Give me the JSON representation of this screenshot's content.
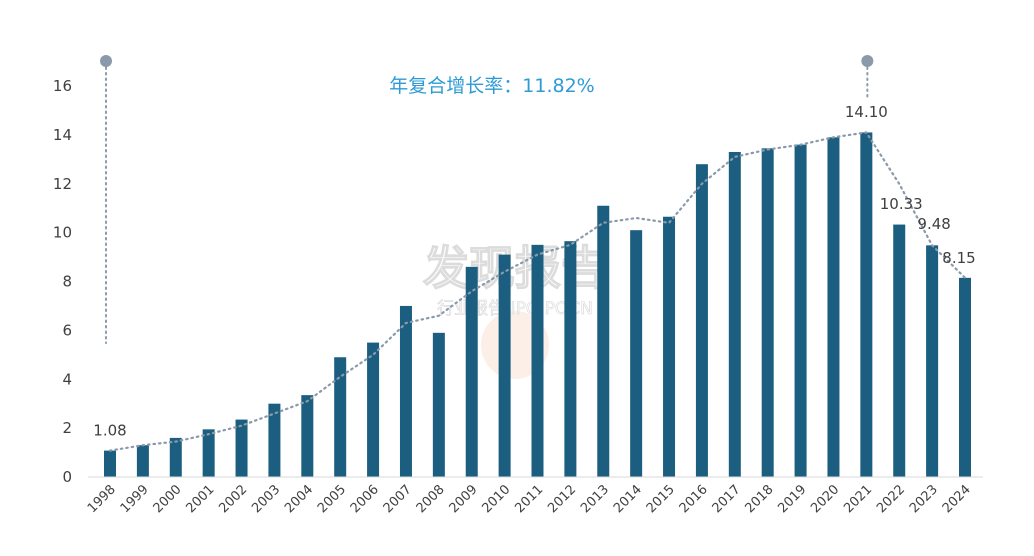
{
  "chart_data": {
    "type": "bar",
    "categories": [
      "1998",
      "1999",
      "2000",
      "2001",
      "2002",
      "2003",
      "2004",
      "2005",
      "2006",
      "2007",
      "2008",
      "2009",
      "2010",
      "2011",
      "2012",
      "2013",
      "2014",
      "2015",
      "2016",
      "2017",
      "2018",
      "2019",
      "2020",
      "2021",
      "2022",
      "2023",
      "2024"
    ],
    "values": [
      1.08,
      1.3,
      1.6,
      1.95,
      2.35,
      3.0,
      3.35,
      4.9,
      5.5,
      7.0,
      5.9,
      8.6,
      9.1,
      9.5,
      9.65,
      11.1,
      10.1,
      10.65,
      12.8,
      13.3,
      13.45,
      13.6,
      13.9,
      14.1,
      10.33,
      9.48,
      8.15
    ],
    "trendline": [
      1.08,
      1.3,
      1.45,
      1.75,
      2.1,
      2.6,
      3.1,
      4.1,
      5.0,
      6.3,
      6.6,
      7.6,
      8.4,
      9.1,
      9.5,
      10.4,
      10.6,
      10.4,
      12.0,
      13.1,
      13.4,
      13.6,
      13.9,
      14.1,
      12.0,
      9.48,
      8.15
    ],
    "data_labels": [
      {
        "category": "1998",
        "text": "1.08"
      },
      {
        "category": "2021",
        "text": "14.10"
      },
      {
        "category": "2022",
        "text": "10.33"
      },
      {
        "category": "2023",
        "text": "9.48"
      },
      {
        "category": "2024",
        "text": "8.15"
      }
    ],
    "yticks": [
      "0",
      "2",
      "4",
      "6",
      "8",
      "10",
      "12",
      "14",
      "16"
    ],
    "ylim": [
      0,
      16
    ],
    "grid": false,
    "title": "",
    "xlabel": "",
    "ylabel": "",
    "annotation": "年复合增长率：11.82%",
    "colors": {
      "bar": "#1b5e80",
      "trend": "#8a9aab",
      "annotation": "#2e9bd6",
      "marker": "#8a9aab"
    }
  },
  "watermark": {
    "main": "发现报告",
    "sub": "行业报告 IPO POCN"
  }
}
